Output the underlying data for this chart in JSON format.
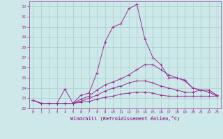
{
  "xlabel": "Windchill (Refroidissement éolien,°C)",
  "background_color": "#cce8e8",
  "grid_color": "#aacccc",
  "line_color": "#993399",
  "xlim": [
    -0.5,
    23.5
  ],
  "ylim": [
    22,
    32.5
  ],
  "yticks": [
    22,
    23,
    24,
    25,
    26,
    27,
    28,
    29,
    30,
    31,
    32
  ],
  "xticks": [
    0,
    1,
    2,
    3,
    4,
    5,
    6,
    7,
    8,
    9,
    10,
    11,
    12,
    13,
    14,
    15,
    16,
    17,
    18,
    19,
    20,
    21,
    22,
    23
  ],
  "series": [
    [
      22.8,
      22.5,
      22.5,
      22.5,
      23.9,
      22.5,
      23.3,
      23.5,
      25.5,
      28.5,
      30.0,
      30.3,
      31.8,
      32.2,
      28.8,
      27.0,
      26.3,
      25.0,
      25.0,
      24.8,
      24.0,
      23.8,
      23.8,
      23.3
    ],
    [
      22.8,
      22.5,
      22.5,
      22.5,
      22.5,
      22.5,
      22.9,
      23.2,
      23.8,
      24.3,
      24.6,
      24.9,
      25.3,
      25.8,
      26.3,
      26.3,
      25.8,
      25.3,
      25.0,
      24.7,
      24.0,
      23.8,
      23.8,
      23.3
    ],
    [
      22.8,
      22.5,
      22.5,
      22.5,
      22.5,
      22.5,
      22.7,
      23.0,
      23.3,
      23.7,
      24.0,
      24.2,
      24.5,
      24.7,
      24.7,
      24.5,
      24.2,
      24.0,
      23.8,
      23.6,
      23.6,
      23.8,
      23.6,
      23.2
    ],
    [
      22.8,
      22.5,
      22.5,
      22.5,
      22.5,
      22.5,
      22.6,
      22.7,
      22.9,
      23.1,
      23.2,
      23.4,
      23.5,
      23.6,
      23.6,
      23.5,
      23.3,
      23.2,
      23.2,
      23.2,
      23.2,
      23.2,
      23.2,
      23.2
    ]
  ]
}
